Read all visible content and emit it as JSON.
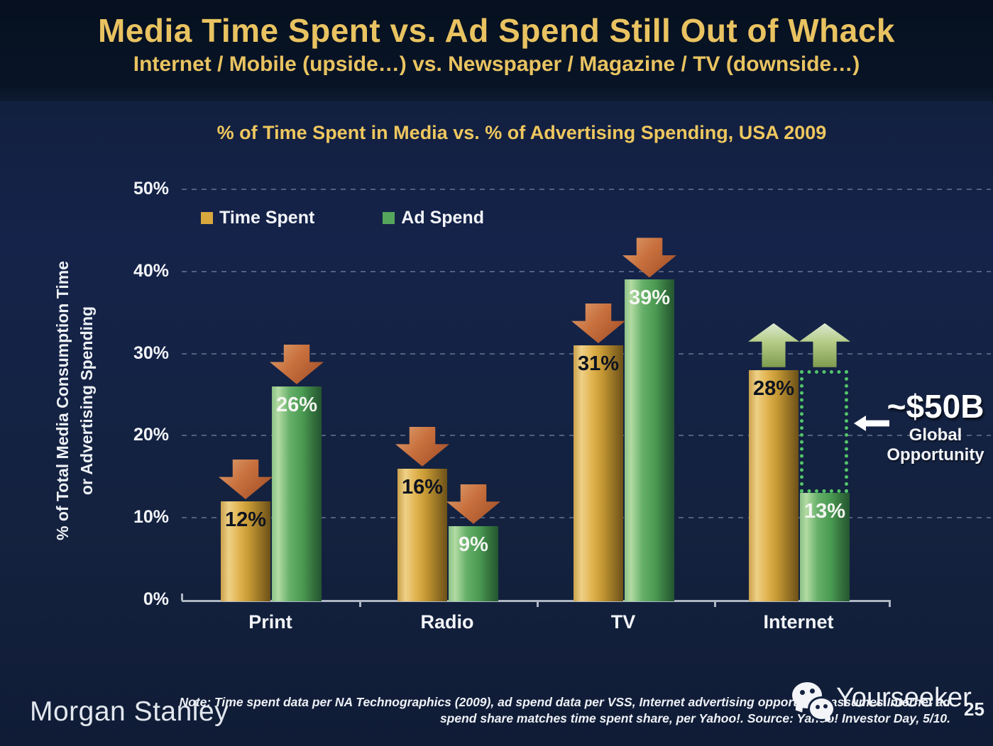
{
  "header": {
    "title": "Media Time Spent vs. Ad Spend Still Out of Whack",
    "subtitle": "Internet / Mobile (upside…) vs. Newspaper / Magazine / TV (downside…)"
  },
  "chart_data": {
    "type": "bar",
    "title": "% of Time Spent in Media vs. % of Advertising Spending, USA 2009",
    "ylabel": [
      "% of Total Media Consumption Time",
      "or Advertising Spending"
    ],
    "categories": [
      "Print",
      "Radio",
      "TV",
      "Internet"
    ],
    "series": [
      {
        "name": "Time Spent",
        "key": "time_spent",
        "values": [
          12,
          16,
          31,
          28
        ]
      },
      {
        "name": "Ad Spend",
        "key": "ad_spend",
        "values": [
          26,
          9,
          39,
          13
        ]
      }
    ],
    "value_suffix": "%",
    "ylim": [
      0,
      50
    ],
    "ytick_step": 10,
    "yticks": [
      "0%",
      "10%",
      "20%",
      "30%",
      "40%",
      "50%"
    ],
    "grid": "dashed-horizontal",
    "legend_position": "top-left-inside",
    "trend_arrows": [
      "down",
      "down",
      "down",
      "up"
    ],
    "gap_box": {
      "category": "Internet",
      "series": "Ad Spend",
      "from": 13,
      "to": 28
    },
    "annotation": {
      "headline": "~$50B",
      "line1": "Global",
      "line2": "Opportunity"
    },
    "colors": {
      "time_spent": "#d8a83f",
      "ad_spend": "#56a55c",
      "down_arrow": "#bf5e35",
      "up_arrow": "#aabf6d",
      "gap_box_border": "#53c56a",
      "title_gold": "#e9c361",
      "header_background": "#081426",
      "body_background": "#14223f"
    }
  },
  "footer": {
    "brand": "Morgan Stanley",
    "note_line1": "Note: Time spent data per NA Technographics (2009), ad spend data per VSS, Internet advertising opportunity assumes Internet ad",
    "note_line2": "spend share matches time spent share, per Yahoo!. Source: Yahoo! Investor Day, 5/10.",
    "page_number": "25",
    "watermark": "Yourseeker"
  }
}
